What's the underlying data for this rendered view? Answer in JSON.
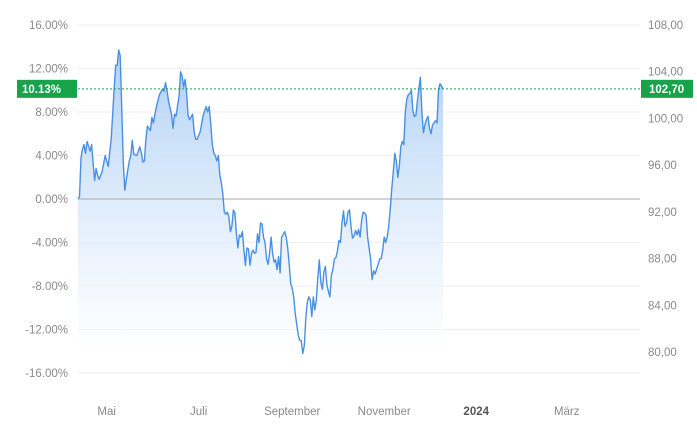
{
  "chart_data": {
    "type": "area",
    "left_axis": {
      "unit": "percent",
      "ylim": [
        -16,
        16
      ],
      "ticks": [
        16,
        12,
        8,
        4,
        0,
        -4,
        -8,
        -12,
        -16
      ],
      "tick_labels": [
        "16.00%",
        "12.00%",
        "8.00%",
        "4.00%",
        "0.00%",
        "-4.00%",
        "-8.00%",
        "-12.00%",
        "-16.00%"
      ]
    },
    "right_axis": {
      "unit": "price",
      "ticks": [
        108,
        104,
        100,
        96,
        92,
        88,
        84,
        80
      ],
      "tick_labels": [
        "108,00",
        "104,00",
        "100,00",
        "96,00",
        "92,00",
        "88,00",
        "84,00",
        "80,00"
      ]
    },
    "x_axis": {
      "range": [
        "2023-04-12",
        "2024-04-02"
      ],
      "ticks": [
        {
          "date": "2023-05-01",
          "label": "Mai",
          "bold": false
        },
        {
          "date": "2023-07-01",
          "label": "Juli",
          "bold": false
        },
        {
          "date": "2023-09-01",
          "label": "September",
          "bold": false
        },
        {
          "date": "2023-11-01",
          "label": "November",
          "bold": false
        },
        {
          "date": "2024-01-01",
          "label": "2024",
          "bold": true
        },
        {
          "date": "2024-03-01",
          "label": "März",
          "bold": false
        }
      ]
    },
    "grid": true,
    "series": [
      {
        "unit": "percent",
        "points": [
          [
            "2023-04-12",
            0.0
          ],
          [
            "2023-04-13",
            0.2
          ],
          [
            "2023-04-14",
            3.8
          ],
          [
            "2023-04-15",
            4.6
          ],
          [
            "2023-04-16",
            5.0
          ],
          [
            "2023-04-17",
            4.2
          ],
          [
            "2023-04-18",
            5.3
          ],
          [
            "2023-04-20",
            4.4
          ],
          [
            "2023-04-21",
            5.0
          ],
          [
            "2023-04-23",
            1.7
          ],
          [
            "2023-04-24",
            2.8
          ],
          [
            "2023-04-25",
            2.2
          ],
          [
            "2023-04-26",
            1.8
          ],
          [
            "2023-04-28",
            2.5
          ],
          [
            "2023-04-30",
            4.0
          ],
          [
            "2023-05-02",
            3.0
          ],
          [
            "2023-05-04",
            5.5
          ],
          [
            "2023-05-06",
            10.2
          ],
          [
            "2023-05-07",
            12.3
          ],
          [
            "2023-05-08",
            12.3
          ],
          [
            "2023-05-09",
            13.7
          ],
          [
            "2023-05-10",
            13.2
          ],
          [
            "2023-05-11",
            8.5
          ],
          [
            "2023-05-12",
            3.3
          ],
          [
            "2023-05-13",
            0.8
          ],
          [
            "2023-05-14",
            1.8
          ],
          [
            "2023-05-16",
            3.5
          ],
          [
            "2023-05-17",
            4.0
          ],
          [
            "2023-05-18",
            5.4
          ],
          [
            "2023-05-19",
            4.1
          ],
          [
            "2023-05-21",
            4.0
          ],
          [
            "2023-05-23",
            4.8
          ],
          [
            "2023-05-24",
            4.2
          ],
          [
            "2023-05-25",
            3.4
          ],
          [
            "2023-05-26",
            3.5
          ],
          [
            "2023-05-27",
            5.5
          ],
          [
            "2023-05-28",
            6.7
          ],
          [
            "2023-05-30",
            6.3
          ],
          [
            "2023-05-31",
            7.5
          ],
          [
            "2023-06-01",
            7.0
          ],
          [
            "2023-06-03",
            8.5
          ],
          [
            "2023-06-05",
            9.6
          ],
          [
            "2023-06-07",
            10.1
          ],
          [
            "2023-06-08",
            9.9
          ],
          [
            "2023-06-09",
            10.7
          ],
          [
            "2023-06-10",
            10.0
          ],
          [
            "2023-06-11",
            9.0
          ],
          [
            "2023-06-13",
            7.8
          ],
          [
            "2023-06-14",
            6.5
          ],
          [
            "2023-06-15",
            7.8
          ],
          [
            "2023-06-16",
            7.6
          ],
          [
            "2023-06-18",
            9.5
          ],
          [
            "2023-06-19",
            11.7
          ],
          [
            "2023-06-20",
            11.3
          ],
          [
            "2023-06-21",
            10.3
          ],
          [
            "2023-06-22",
            11.0
          ],
          [
            "2023-06-23",
            9.7
          ],
          [
            "2023-06-24",
            7.7
          ],
          [
            "2023-06-25",
            7.3
          ],
          [
            "2023-06-27",
            7.8
          ],
          [
            "2023-06-28",
            6.2
          ],
          [
            "2023-06-29",
            5.5
          ],
          [
            "2023-06-30",
            5.5
          ],
          [
            "2023-07-02",
            6.2
          ],
          [
            "2023-07-04",
            7.7
          ],
          [
            "2023-07-05",
            8.1
          ],
          [
            "2023-07-06",
            8.5
          ],
          [
            "2023-07-07",
            8.0
          ],
          [
            "2023-07-08",
            8.5
          ],
          [
            "2023-07-09",
            7.0
          ],
          [
            "2023-07-10",
            5.0
          ],
          [
            "2023-07-11",
            4.2
          ],
          [
            "2023-07-12",
            4.0
          ],
          [
            "2023-07-13",
            3.5
          ],
          [
            "2023-07-14",
            4.0
          ],
          [
            "2023-07-15",
            2.2
          ],
          [
            "2023-07-16",
            1.5
          ],
          [
            "2023-07-17",
            0.5
          ],
          [
            "2023-07-18",
            -1.2
          ],
          [
            "2023-07-19",
            -1.4
          ],
          [
            "2023-07-20",
            -1.2
          ],
          [
            "2023-07-21",
            -1.6
          ],
          [
            "2023-07-22",
            -3.0
          ],
          [
            "2023-07-23",
            -2.5
          ],
          [
            "2023-07-24",
            -1.0
          ],
          [
            "2023-07-25",
            -1.3
          ],
          [
            "2023-07-26",
            -3.2
          ],
          [
            "2023-07-27",
            -4.5
          ],
          [
            "2023-07-28",
            -3.3
          ],
          [
            "2023-07-29",
            -3.5
          ],
          [
            "2023-07-30",
            -3.0
          ],
          [
            "2023-07-31",
            -4.7
          ],
          [
            "2023-08-01",
            -6.1
          ],
          [
            "2023-08-02",
            -4.5
          ],
          [
            "2023-08-03",
            -4.6
          ],
          [
            "2023-08-04",
            -6.1
          ],
          [
            "2023-08-05",
            -5.0
          ],
          [
            "2023-08-06",
            -4.7
          ],
          [
            "2023-08-07",
            -5.0
          ],
          [
            "2023-08-08",
            -4.9
          ],
          [
            "2023-08-09",
            -3.2
          ],
          [
            "2023-08-10",
            -4.0
          ],
          [
            "2023-08-11",
            -2.2
          ],
          [
            "2023-08-12",
            -2.3
          ],
          [
            "2023-08-13",
            -3.5
          ],
          [
            "2023-08-14",
            -4.0
          ],
          [
            "2023-08-15",
            -5.5
          ],
          [
            "2023-08-16",
            -6.0
          ],
          [
            "2023-08-17",
            -5.0
          ],
          [
            "2023-08-18",
            -3.5
          ],
          [
            "2023-08-19",
            -5.0
          ],
          [
            "2023-08-20",
            -5.8
          ],
          [
            "2023-08-21",
            -5.6
          ],
          [
            "2023-08-22",
            -6.5
          ],
          [
            "2023-08-23",
            -5.3
          ],
          [
            "2023-08-24",
            -6.8
          ],
          [
            "2023-08-25",
            -3.5
          ],
          [
            "2023-08-26",
            -3.3
          ],
          [
            "2023-08-27",
            -3.0
          ],
          [
            "2023-08-28",
            -3.5
          ],
          [
            "2023-08-29",
            -4.5
          ],
          [
            "2023-08-30",
            -6.0
          ],
          [
            "2023-08-31",
            -7.8
          ],
          [
            "2023-09-01",
            -8.2
          ],
          [
            "2023-09-02",
            -9.0
          ],
          [
            "2023-09-03",
            -10.5
          ],
          [
            "2023-09-04",
            -11.5
          ],
          [
            "2023-09-05",
            -12.5
          ],
          [
            "2023-09-06",
            -13.0
          ],
          [
            "2023-09-07",
            -13.0
          ],
          [
            "2023-09-08",
            -14.2
          ],
          [
            "2023-09-09",
            -13.5
          ],
          [
            "2023-09-10",
            -11.0
          ],
          [
            "2023-09-11",
            -9.5
          ],
          [
            "2023-09-12",
            -9.0
          ],
          [
            "2023-09-13",
            -9.3
          ],
          [
            "2023-09-14",
            -10.8
          ],
          [
            "2023-09-15",
            -9.0
          ],
          [
            "2023-09-16",
            -10.2
          ],
          [
            "2023-09-17",
            -9.3
          ],
          [
            "2023-09-18",
            -7.3
          ],
          [
            "2023-09-19",
            -5.6
          ],
          [
            "2023-09-20",
            -7.7
          ],
          [
            "2023-09-21",
            -8.3
          ],
          [
            "2023-09-22",
            -6.7
          ],
          [
            "2023-09-23",
            -6.2
          ],
          [
            "2023-09-24",
            -7.9
          ],
          [
            "2023-09-25",
            -8.5
          ],
          [
            "2023-09-26",
            -9.0
          ],
          [
            "2023-09-27",
            -7.0
          ],
          [
            "2023-09-28",
            -6.5
          ],
          [
            "2023-09-29",
            -5.5
          ],
          [
            "2023-09-30",
            -5.4
          ],
          [
            "2023-10-01",
            -4.8
          ],
          [
            "2023-10-02",
            -3.8
          ],
          [
            "2023-10-03",
            -4.0
          ],
          [
            "2023-10-04",
            -2.2
          ],
          [
            "2023-10-05",
            -1.1
          ],
          [
            "2023-10-06",
            -2.5
          ],
          [
            "2023-10-07",
            -2.2
          ],
          [
            "2023-10-08",
            -1.2
          ],
          [
            "2023-10-09",
            -1.0
          ],
          [
            "2023-10-10",
            -2.5
          ],
          [
            "2023-10-11",
            -3.6
          ],
          [
            "2023-10-12",
            -3.4
          ],
          [
            "2023-10-13",
            -2.9
          ],
          [
            "2023-10-14",
            -3.3
          ],
          [
            "2023-10-15",
            -2.8
          ],
          [
            "2023-10-16",
            -3.5
          ],
          [
            "2023-10-17",
            -2.0
          ],
          [
            "2023-10-18",
            -1.2
          ],
          [
            "2023-10-19",
            -1.3
          ],
          [
            "2023-10-20",
            -1.5
          ],
          [
            "2023-10-21",
            -3.5
          ],
          [
            "2023-10-22",
            -4.5
          ],
          [
            "2023-10-23",
            -5.5
          ],
          [
            "2023-10-24",
            -7.4
          ],
          [
            "2023-10-25",
            -6.6
          ],
          [
            "2023-10-26",
            -6.9
          ],
          [
            "2023-10-27",
            -6.4
          ],
          [
            "2023-10-28",
            -6.0
          ],
          [
            "2023-10-29",
            -5.5
          ],
          [
            "2023-10-30",
            -5.5
          ],
          [
            "2023-10-31",
            -4.7
          ],
          [
            "2023-11-01",
            -3.5
          ],
          [
            "2023-11-02",
            -4.0
          ],
          [
            "2023-11-03",
            -3.5
          ],
          [
            "2023-11-04",
            -2.5
          ],
          [
            "2023-11-05",
            -1.0
          ],
          [
            "2023-11-06",
            1.0
          ],
          [
            "2023-11-07",
            2.5
          ],
          [
            "2023-11-08",
            4.2
          ],
          [
            "2023-11-09",
            3.5
          ],
          [
            "2023-11-10",
            2.0
          ],
          [
            "2023-11-11",
            3.0
          ],
          [
            "2023-11-12",
            4.8
          ],
          [
            "2023-11-13",
            5.3
          ],
          [
            "2023-11-14",
            5.0
          ],
          [
            "2023-11-15",
            8.0
          ],
          [
            "2023-11-16",
            9.2
          ],
          [
            "2023-11-17",
            9.6
          ],
          [
            "2023-11-18",
            9.7
          ],
          [
            "2023-11-19",
            10.0
          ],
          [
            "2023-11-20",
            8.1
          ],
          [
            "2023-11-21",
            7.6
          ],
          [
            "2023-11-22",
            7.7
          ],
          [
            "2023-11-23",
            9.0
          ],
          [
            "2023-11-24",
            10.2
          ],
          [
            "2023-11-25",
            11.2
          ],
          [
            "2023-11-26",
            8.0
          ],
          [
            "2023-11-27",
            6.1
          ],
          [
            "2023-11-28",
            6.8
          ],
          [
            "2023-11-29",
            7.3
          ],
          [
            "2023-11-30",
            7.6
          ],
          [
            "2023-12-01",
            6.5
          ],
          [
            "2023-12-02",
            6.0
          ],
          [
            "2023-12-03",
            6.8
          ],
          [
            "2023-12-04",
            7.0
          ],
          [
            "2023-12-05",
            7.2
          ],
          [
            "2023-12-06",
            7.0
          ],
          [
            "2023-12-07",
            10.0
          ],
          [
            "2023-12-08",
            10.6
          ],
          [
            "2023-12-09",
            10.4
          ],
          [
            "2023-12-10",
            10.1
          ]
        ]
      }
    ],
    "reference_line": {
      "value": 10.13
    },
    "last_value_badges": {
      "left": {
        "text": "10.13%",
        "color": "#16a34a"
      },
      "right": {
        "text": "102,70",
        "color": "#16a34a"
      }
    },
    "colors": {
      "line": "#4a90e2",
      "fill_top": "#a9cdf5",
      "fill_bottom": "#ffffff",
      "grid": "#eeeeee",
      "zero_line": "#aaaaaa",
      "reference_line": "#16a34a",
      "tick_text": "#8a8a8a"
    }
  }
}
